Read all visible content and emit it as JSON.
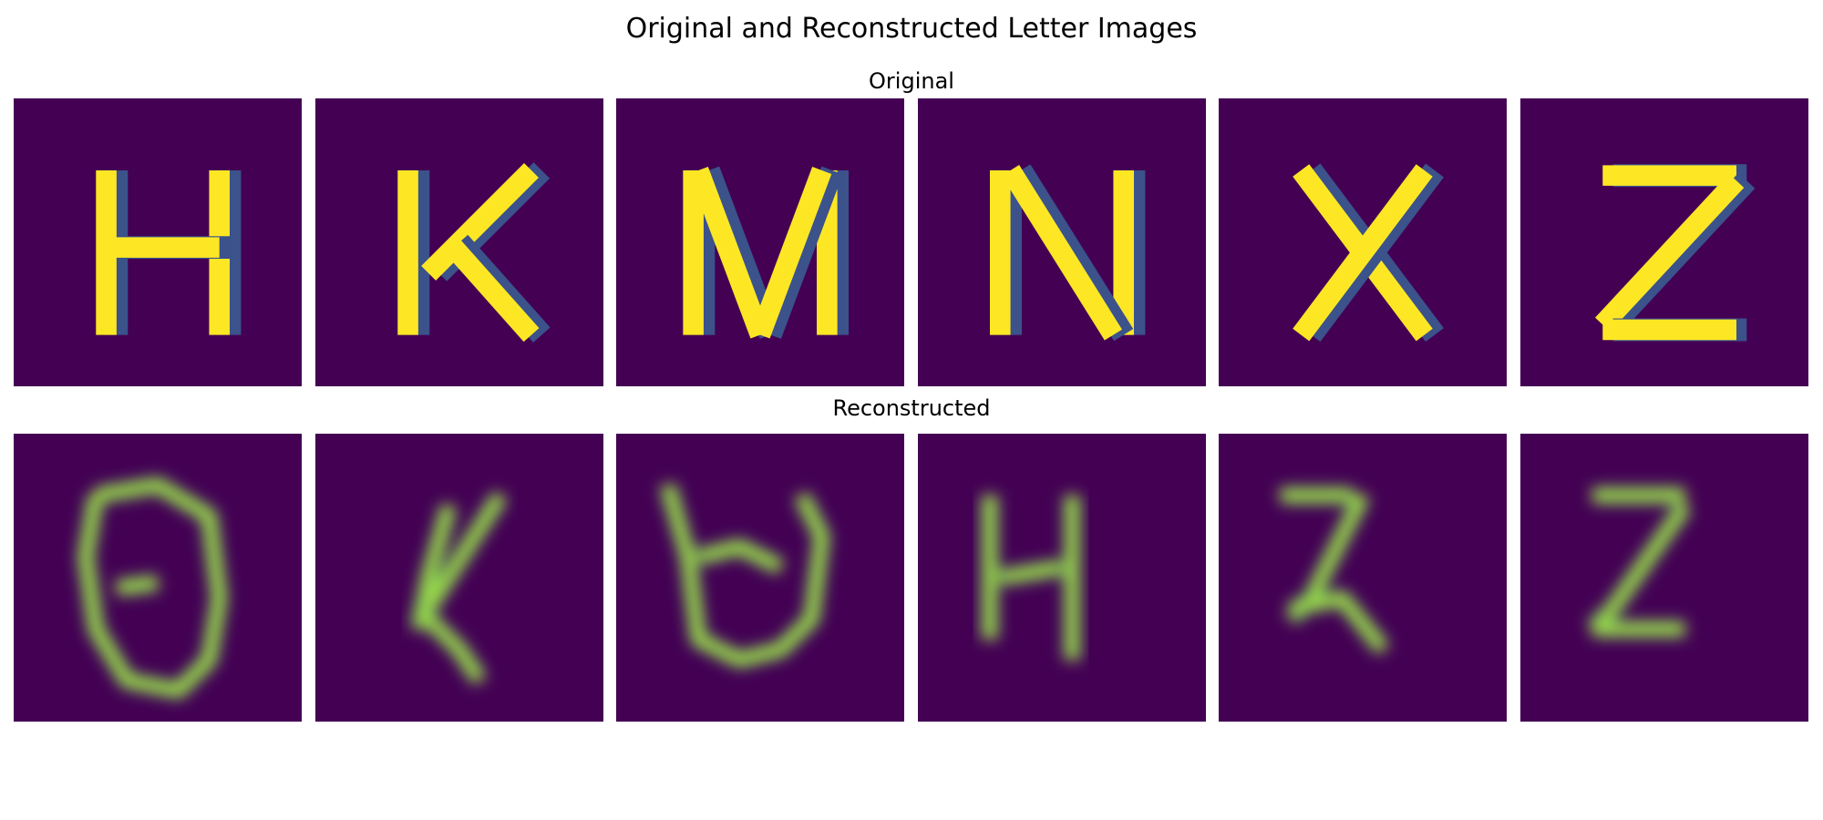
{
  "chart_data": {
    "type": "heatmap",
    "title": "Original and Reconstructed Letter Images",
    "colormap": "viridis",
    "axes_visible": false,
    "rows": [
      {
        "title": "Original",
        "panel_count": 6
      },
      {
        "title": "Reconstructed",
        "panel_count": 6
      }
    ],
    "colors": {
      "background": "#440154",
      "high": "#fde725",
      "mid": "#21918c",
      "low": "#3b528b"
    }
  }
}
